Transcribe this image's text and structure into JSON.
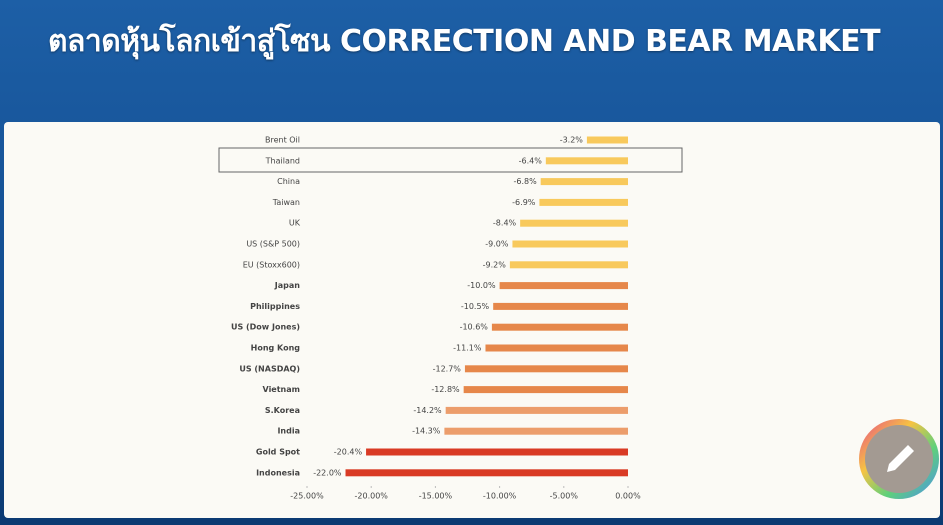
{
  "title": "ตลาดหุ้นโลกเข้าสู่โซน CORRECTION AND BEAR MARKET",
  "chart_data": {
    "type": "bar",
    "orientation": "horizontal",
    "categories": [
      "Brent Oil",
      "Thailand",
      "China",
      "Taiwan",
      "UK",
      "US (S&P 500)",
      "EU (Stoxx600)",
      "Japan",
      "Philippines",
      "US (Dow Jones)",
      "Hong Kong",
      "US (NASDAQ)",
      "Vietnam",
      "S.Korea",
      "India",
      "Gold Spot",
      "Indonesia"
    ],
    "values": [
      -3.2,
      -6.4,
      -6.8,
      -6.9,
      -8.4,
      -9.0,
      -9.2,
      -10.0,
      -10.5,
      -10.6,
      -11.1,
      -12.7,
      -12.8,
      -14.2,
      -14.3,
      -20.4,
      -22.0
    ],
    "value_labels": [
      "-3.2%",
      "-6.4%",
      "-6.8%",
      "-6.9%",
      "-8.4%",
      "-9.0%",
      "-9.2%",
      "-10.0%",
      "-10.5%",
      "-10.6%",
      "-11.1%",
      "-12.7%",
      "-12.8%",
      "-14.2%",
      "-14.3%",
      "-20.4%",
      "-22.0%"
    ],
    "colors": [
      "#f8c95c",
      "#f8c95c",
      "#f8c95c",
      "#f8c95c",
      "#f8c95c",
      "#f8c95c",
      "#f8c95c",
      "#e6874a",
      "#e6874a",
      "#e6874a",
      "#e6874a",
      "#e6874a",
      "#e6874a",
      "#ec9d6b",
      "#ec9d6b",
      "#d93a24",
      "#d93a24"
    ],
    "xlim": [
      -25,
      0
    ],
    "xticks": [
      {
        "value": -25,
        "label": "-25.00%"
      },
      {
        "value": -20,
        "label": "-20.00%"
      },
      {
        "value": -15,
        "label": "-15.00%"
      },
      {
        "value": -10,
        "label": "-10.00%"
      },
      {
        "value": -5,
        "label": "-5.00%"
      },
      {
        "value": 0,
        "label": "0.00%"
      }
    ]
  }
}
